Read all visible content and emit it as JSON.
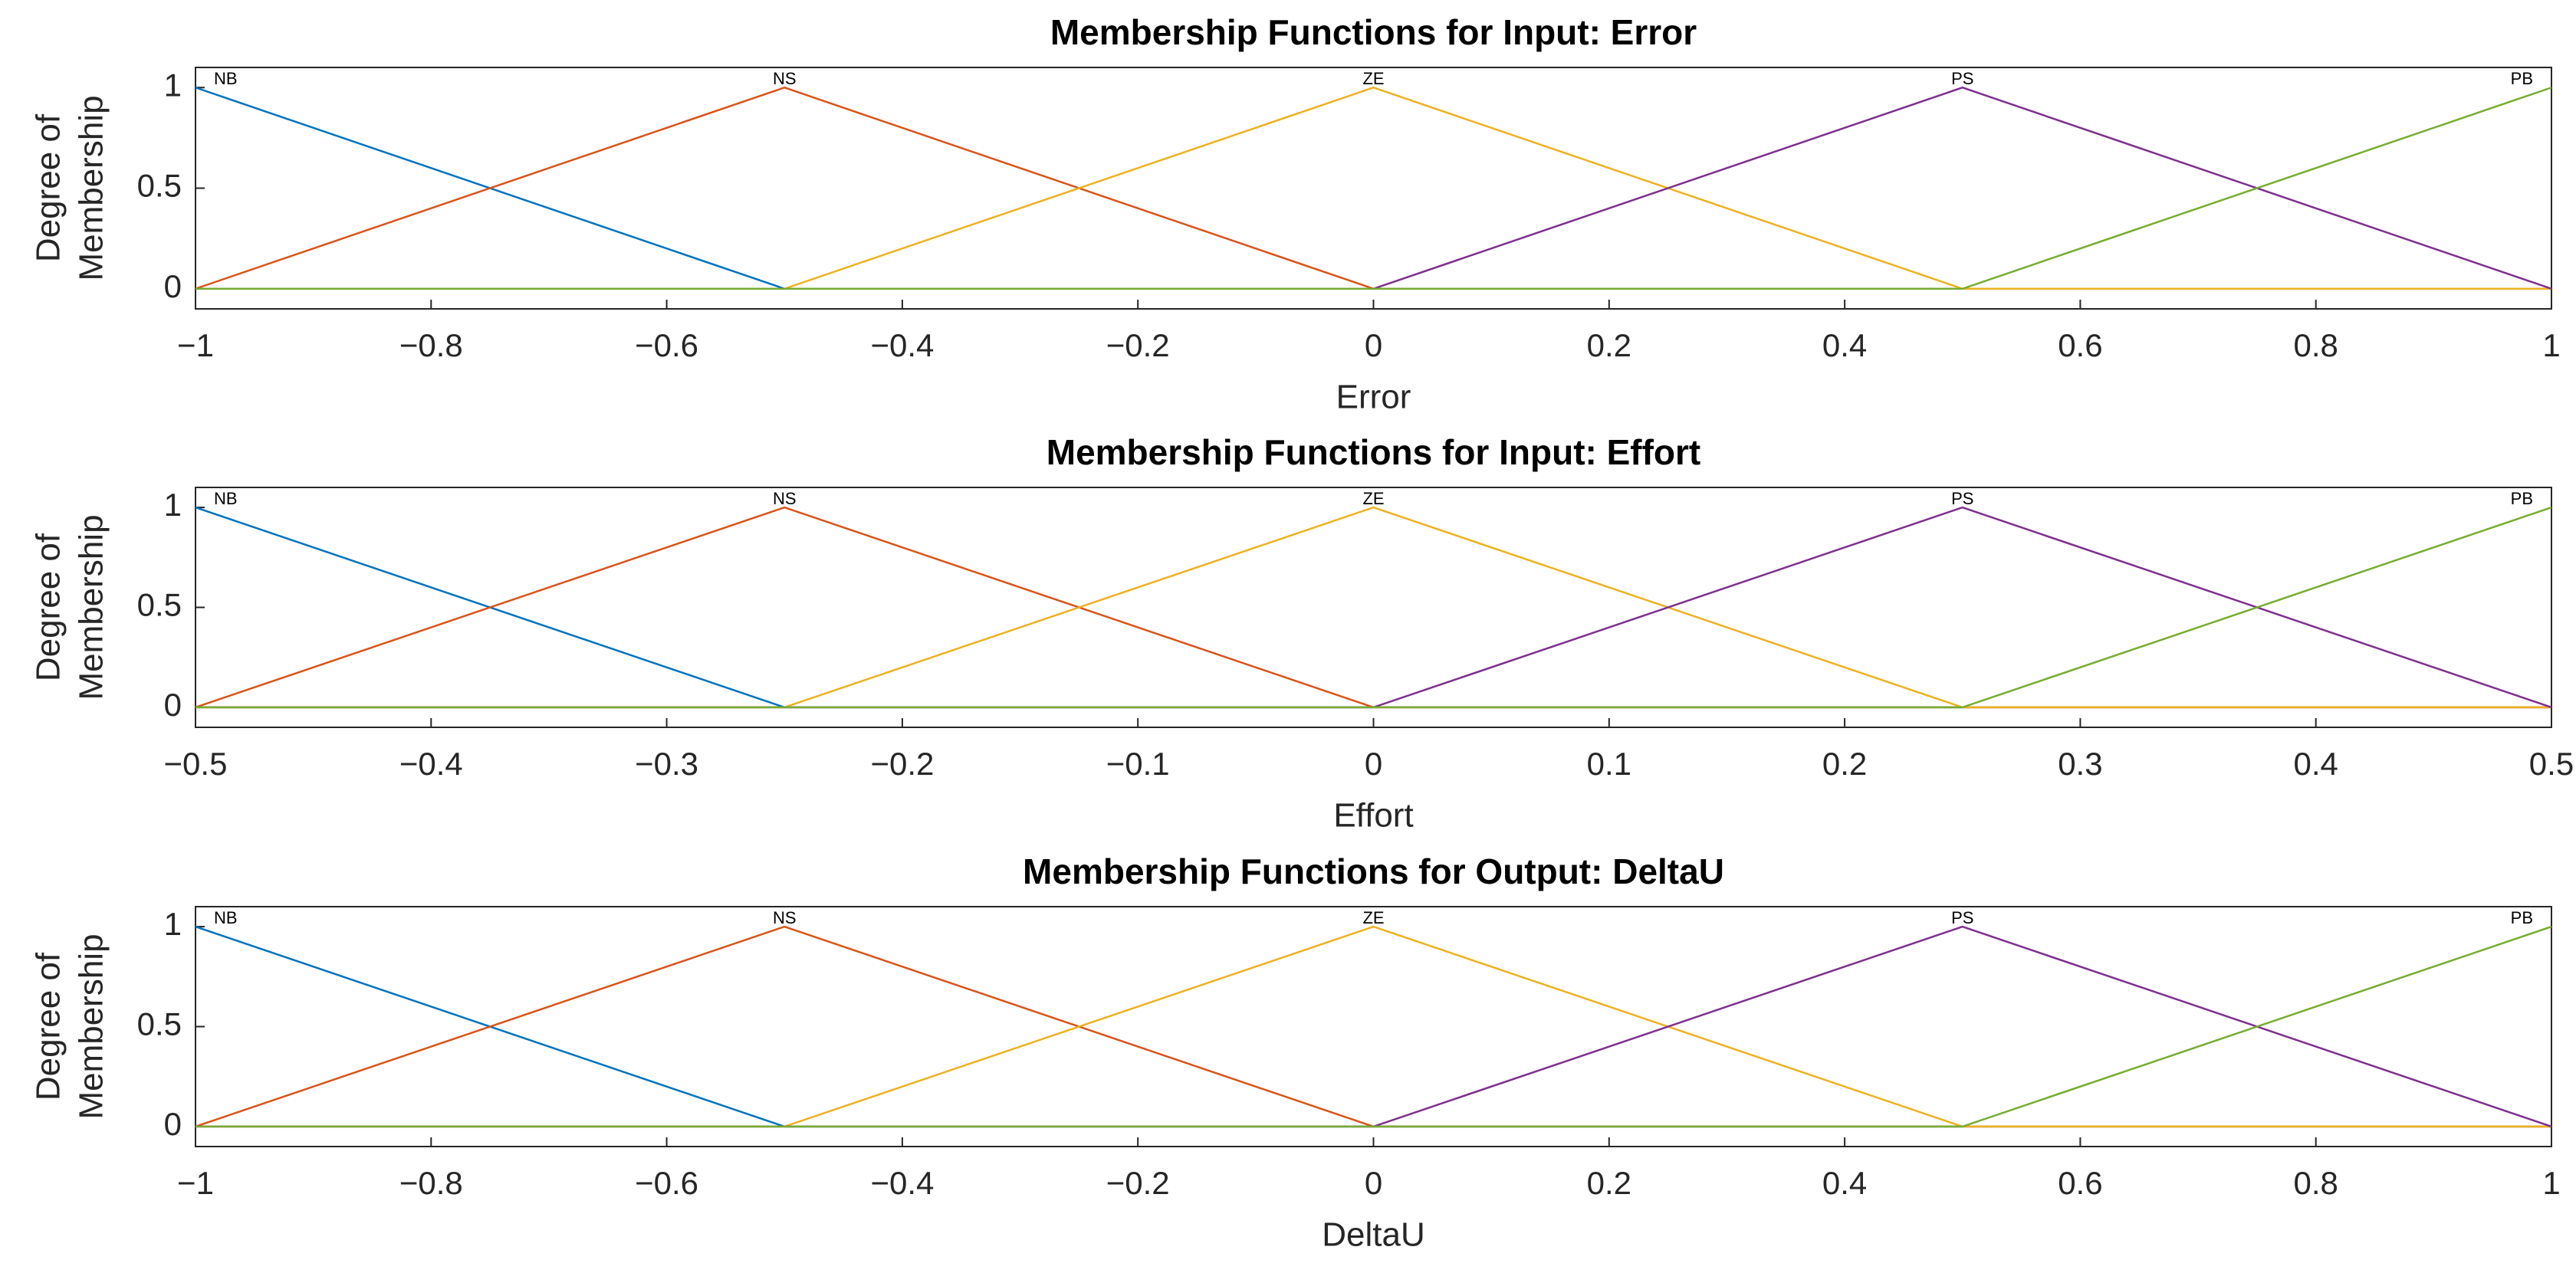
{
  "chart_data": [
    {
      "type": "line",
      "title": "Membership Functions for Input: Error",
      "xlabel": "Error",
      "ylabel": [
        "Degree of",
        "Membership"
      ],
      "xlim": [
        -1,
        1
      ],
      "ylim": [
        -0.1,
        1.1
      ],
      "xticks": [
        {
          "value": -1,
          "label": "−1"
        },
        {
          "value": -0.8,
          "label": "−0.8"
        },
        {
          "value": -0.6,
          "label": "−0.6"
        },
        {
          "value": -0.4,
          "label": "−0.4"
        },
        {
          "value": -0.2,
          "label": "−0.2"
        },
        0,
        0.2,
        0.4,
        0.6,
        0.8,
        1
      ],
      "yticks": [
        0,
        0.5,
        1
      ],
      "series": [
        {
          "name": "NB",
          "color": "#0072BD",
          "x": [
            -1,
            -0.5,
            1
          ],
          "values": [
            1,
            0,
            0
          ]
        },
        {
          "name": "NS",
          "color": "#D95319",
          "x": [
            -1,
            -0.5,
            0,
            1
          ],
          "values": [
            0,
            1,
            0,
            0
          ]
        },
        {
          "name": "ZE",
          "color": "#EDB120",
          "x": [
            -1,
            -0.5,
            0,
            0.5,
            1
          ],
          "values": [
            0,
            0,
            1,
            0,
            0
          ]
        },
        {
          "name": "PS",
          "color": "#7E2F8E",
          "x": [
            -1,
            0,
            0.5,
            1
          ],
          "values": [
            0,
            0,
            1,
            0
          ]
        },
        {
          "name": "PB",
          "color": "#77AC30",
          "x": [
            -1,
            0.5,
            1
          ],
          "values": [
            0,
            0,
            1
          ]
        }
      ]
    },
    {
      "type": "line",
      "title": "Membership Functions for Input: Effort",
      "xlabel": "Effort",
      "ylabel": [
        "Degree of",
        "Membership"
      ],
      "xlim": [
        -0.5,
        0.5
      ],
      "ylim": [
        -0.1,
        1.1
      ],
      "xticks": [
        {
          "value": -0.5,
          "label": "−0.5"
        },
        {
          "value": -0.4,
          "label": "−0.4"
        },
        {
          "value": -0.3,
          "label": "−0.3"
        },
        {
          "value": -0.2,
          "label": "−0.2"
        },
        {
          "value": -0.1,
          "label": "−0.1"
        },
        0,
        0.1,
        0.2,
        0.3,
        0.4,
        0.5
      ],
      "yticks": [
        0,
        0.5,
        1
      ],
      "series": [
        {
          "name": "NB",
          "color": "#0072BD",
          "x": [
            -0.5,
            -0.25,
            0.5
          ],
          "values": [
            1,
            0,
            0
          ]
        },
        {
          "name": "NS",
          "color": "#D95319",
          "x": [
            -0.5,
            -0.25,
            0,
            0.5
          ],
          "values": [
            0,
            1,
            0,
            0
          ]
        },
        {
          "name": "ZE",
          "color": "#EDB120",
          "x": [
            -0.5,
            -0.25,
            0,
            0.25,
            0.5
          ],
          "values": [
            0,
            0,
            1,
            0,
            0
          ]
        },
        {
          "name": "PS",
          "color": "#7E2F8E",
          "x": [
            -0.5,
            0,
            0.25,
            0.5
          ],
          "values": [
            0,
            0,
            1,
            0
          ]
        },
        {
          "name": "PB",
          "color": "#77AC30",
          "x": [
            -0.5,
            0.25,
            0.5
          ],
          "values": [
            0,
            0,
            1
          ]
        }
      ]
    },
    {
      "type": "line",
      "title": "Membership Functions for Output: DeltaU",
      "xlabel": "DeltaU",
      "ylabel": [
        "Degree of",
        "Membership"
      ],
      "xlim": [
        -1,
        1
      ],
      "ylim": [
        -0.1,
        1.1
      ],
      "xticks": [
        {
          "value": -1,
          "label": "−1"
        },
        {
          "value": -0.8,
          "label": "−0.8"
        },
        {
          "value": -0.6,
          "label": "−0.6"
        },
        {
          "value": -0.4,
          "label": "−0.4"
        },
        {
          "value": -0.2,
          "label": "−0.2"
        },
        0,
        0.2,
        0.4,
        0.6,
        0.8,
        1
      ],
      "yticks": [
        0,
        0.5,
        1
      ],
      "series": [
        {
          "name": "NB",
          "color": "#0072BD",
          "x": [
            -1,
            -0.5,
            1
          ],
          "values": [
            1,
            0,
            0
          ]
        },
        {
          "name": "NS",
          "color": "#D95319",
          "x": [
            -1,
            -0.5,
            0,
            1
          ],
          "values": [
            0,
            1,
            0,
            0
          ]
        },
        {
          "name": "ZE",
          "color": "#EDB120",
          "x": [
            -1,
            -0.5,
            0,
            0.5,
            1
          ],
          "values": [
            0,
            0,
            1,
            0,
            0
          ]
        },
        {
          "name": "PS",
          "color": "#7E2F8E",
          "x": [
            -1,
            0,
            0.5,
            1
          ],
          "values": [
            0,
            0,
            1,
            0
          ]
        },
        {
          "name": "PB",
          "color": "#77AC30",
          "x": [
            -1,
            0.5,
            1
          ],
          "values": [
            0,
            0,
            1
          ]
        }
      ]
    }
  ]
}
